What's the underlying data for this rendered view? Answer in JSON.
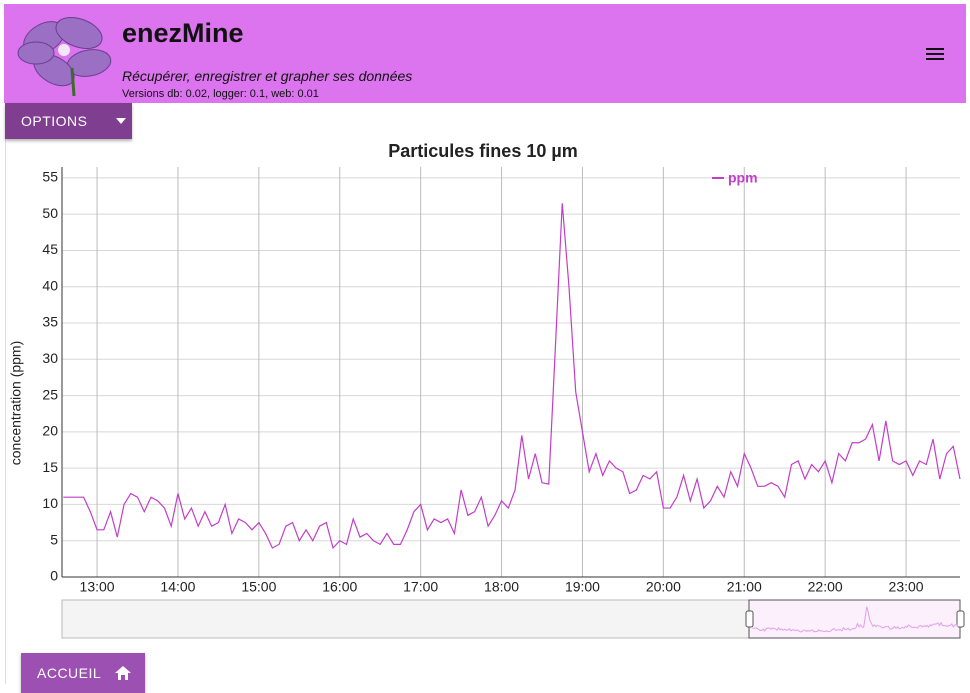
{
  "header": {
    "title": "enezMine",
    "subtitle": "Récupérer, enregistrer et grapher ses données",
    "versions": "Versions db: 0.02, logger: 0.1, web: 0.01"
  },
  "options_button": "OPTIONS",
  "home_button": "ACCUEIL",
  "chart_data": {
    "type": "line",
    "title": "Particules fines 10 µm",
    "y_label": "concentration (ppm)",
    "x": [
      "12:35",
      "12:40",
      "12:45",
      "12:50",
      "12:55",
      "13:00",
      "13:05",
      "13:10",
      "13:15",
      "13:20",
      "13:25",
      "13:30",
      "13:35",
      "13:40",
      "13:45",
      "13:50",
      "13:55",
      "14:00",
      "14:05",
      "14:10",
      "14:15",
      "14:20",
      "14:25",
      "14:30",
      "14:35",
      "14:40",
      "14:45",
      "14:50",
      "14:55",
      "15:00",
      "15:05",
      "15:10",
      "15:15",
      "15:20",
      "15:25",
      "15:30",
      "15:35",
      "15:40",
      "15:45",
      "15:50",
      "15:55",
      "16:00",
      "16:05",
      "16:10",
      "16:15",
      "16:20",
      "16:25",
      "16:30",
      "16:35",
      "16:40",
      "16:45",
      "16:50",
      "16:55",
      "17:00",
      "17:05",
      "17:10",
      "17:15",
      "17:20",
      "17:25",
      "17:30",
      "17:35",
      "17:40",
      "17:45",
      "17:50",
      "17:55",
      "18:00",
      "18:05",
      "18:10",
      "18:15",
      "18:20",
      "18:25",
      "18:30",
      "18:35",
      "18:40",
      "18:45",
      "18:50",
      "18:55",
      "19:00",
      "19:05",
      "19:10",
      "19:15",
      "19:20",
      "19:25",
      "19:30",
      "19:35",
      "19:40",
      "19:45",
      "19:50",
      "19:55",
      "20:00",
      "20:05",
      "20:10",
      "20:15",
      "20:20",
      "20:25",
      "20:30",
      "20:35",
      "20:40",
      "20:45",
      "20:50",
      "20:55",
      "21:00",
      "21:05",
      "21:10",
      "21:15",
      "21:20",
      "21:25",
      "21:30",
      "21:35",
      "21:40",
      "21:45",
      "21:50",
      "21:55",
      "22:00",
      "22:05",
      "22:10",
      "22:15",
      "22:20",
      "22:25",
      "22:30",
      "22:35",
      "22:40",
      "22:45",
      "22:50",
      "22:55",
      "23:00",
      "23:05",
      "23:10",
      "23:15",
      "23:20",
      "23:25",
      "23:30",
      "23:35",
      "23:40"
    ],
    "series": [
      {
        "name": "ppm",
        "color": "#c23ec8",
        "values": [
          11,
          11,
          11,
          11,
          9,
          6.5,
          6.5,
          9,
          5.5,
          10,
          11.5,
          11,
          9,
          11,
          10.5,
          9.5,
          7,
          11.5,
          8,
          9.5,
          7,
          9,
          7,
          7.5,
          10,
          6,
          8,
          7.5,
          6.5,
          7.5,
          6,
          4,
          4.5,
          7,
          7.5,
          5,
          6.5,
          5,
          7,
          7.5,
          4,
          5,
          4.5,
          8,
          5.5,
          6,
          5,
          4.5,
          6,
          4.5,
          4.5,
          6.5,
          9,
          10,
          6.5,
          8,
          7.5,
          8,
          6,
          12,
          8.5,
          9,
          11,
          7,
          8.5,
          10.5,
          9.5,
          12,
          19.5,
          13.5,
          17,
          13,
          12.8,
          32,
          51.5,
          40,
          25.5,
          20,
          14.5,
          17,
          14,
          16,
          15,
          14.5,
          11.5,
          12,
          14,
          13.5,
          14.5,
          9.5,
          9.5,
          11,
          14,
          10.5,
          13.5,
          9.5,
          10.5,
          12.5,
          11,
          14.5,
          12.5,
          17,
          15,
          12.5,
          12.5,
          13,
          12.5,
          11,
          15.5,
          16,
          13.5,
          15.5,
          14.5,
          16,
          13,
          17,
          16,
          18.5,
          18.5,
          19,
          21,
          16,
          21.5,
          16,
          15.5,
          16,
          14,
          16,
          15.5,
          19,
          13.5,
          17,
          18,
          13.5
        ]
      }
    ],
    "xlim": [
      "12:34",
      "23:40"
    ],
    "xticks": [
      "13:00",
      "14:00",
      "15:00",
      "16:00",
      "17:00",
      "18:00",
      "19:00",
      "20:00",
      "21:00",
      "22:00",
      "23:00"
    ],
    "ylim": [
      0,
      56.5
    ],
    "yticks": [
      0,
      5,
      10,
      15,
      20,
      25,
      30,
      35,
      40,
      45,
      50,
      55
    ],
    "grid": true
  }
}
